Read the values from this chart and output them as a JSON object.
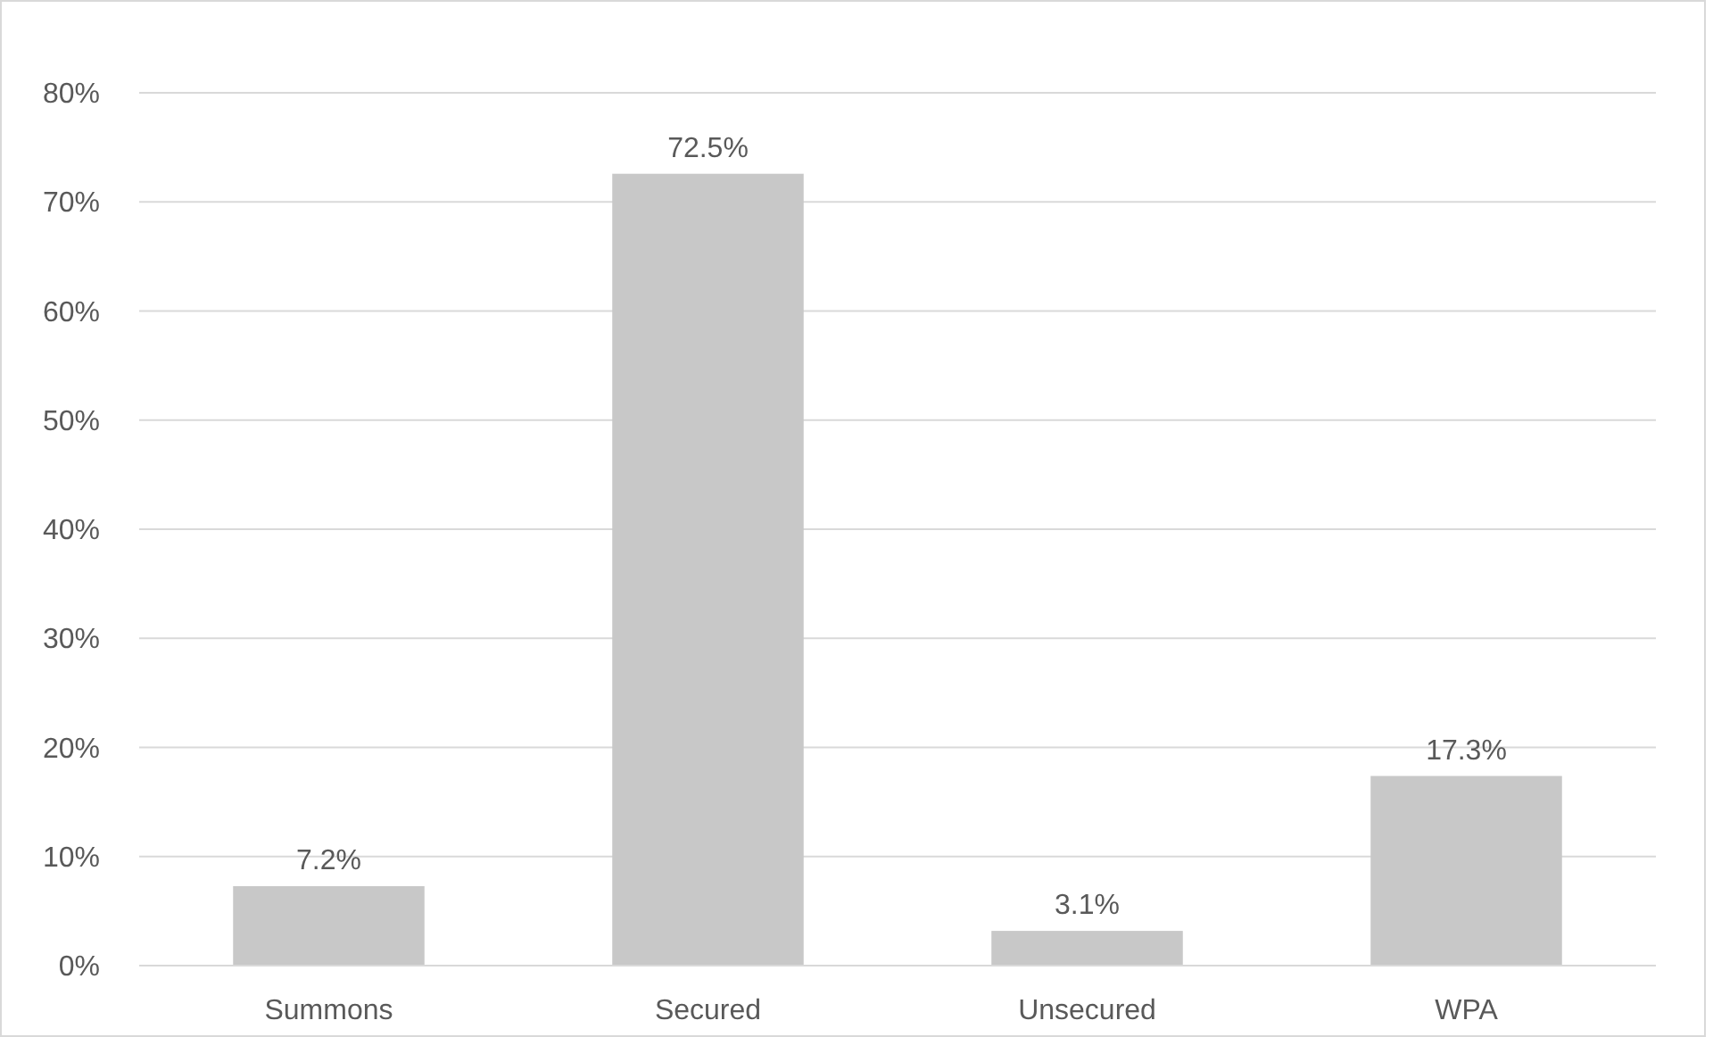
{
  "chart_data": {
    "type": "bar",
    "categories": [
      "Summons",
      "Secured",
      "Unsecured",
      "WPA"
    ],
    "values": [
      7.2,
      72.5,
      3.1,
      17.3
    ],
    "value_labels": [
      "7.2%",
      "72.5%",
      "3.1%",
      "17.3%"
    ],
    "color": "#c8c8c8",
    "ylim": [
      0,
      80
    ],
    "yticks": [
      {
        "value": 0,
        "label": "0%"
      },
      {
        "value": 10,
        "label": "10%"
      },
      {
        "value": 20,
        "label": "20%"
      },
      {
        "value": 30,
        "label": "30%"
      },
      {
        "value": 40,
        "label": "40%"
      },
      {
        "value": 50,
        "label": "50%"
      },
      {
        "value": 60,
        "label": "60%"
      },
      {
        "value": 70,
        "label": "70%"
      },
      {
        "value": 80,
        "label": "80%"
      }
    ],
    "grid": "y"
  }
}
